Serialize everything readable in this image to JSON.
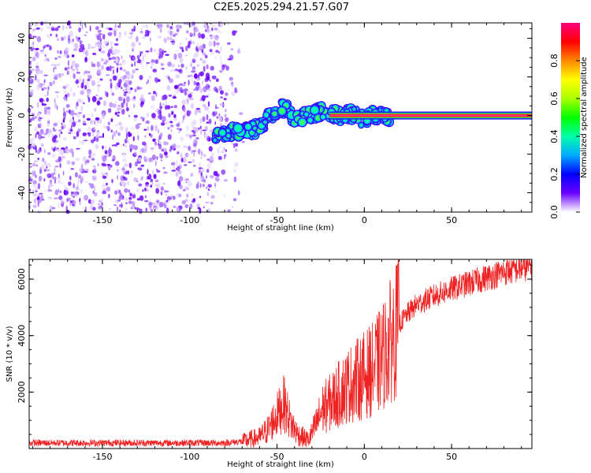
{
  "title": "C2E5.2025.294.21.57.G07",
  "chart_data": [
    {
      "type": "heatmap",
      "name": "spectrogram",
      "xlabel": "Height of straight line (km)",
      "ylabel": "Frequency (Hz)",
      "xlim": [
        -192,
        96
      ],
      "ylim": [
        -50,
        48
      ],
      "xticks": [
        -150,
        -100,
        -50,
        0,
        50
      ],
      "yticks": [
        -40,
        -20,
        0,
        20,
        40
      ],
      "noise_region_x": [
        -192,
        -68
      ],
      "signal_path": [
        {
          "x": -86,
          "y": -12
        },
        {
          "x": -75,
          "y": -8
        },
        {
          "x": -65,
          "y": -8
        },
        {
          "x": -58,
          "y": -6
        },
        {
          "x": -55,
          "y": 0
        },
        {
          "x": -50,
          "y": 2
        },
        {
          "x": -45,
          "y": 5
        },
        {
          "x": -40,
          "y": -3
        },
        {
          "x": -35,
          "y": 0
        },
        {
          "x": -30,
          "y": 1
        },
        {
          "x": -25,
          "y": 2
        },
        {
          "x": -20,
          "y": 1
        },
        {
          "x": -15,
          "y": 0
        },
        {
          "x": -5,
          "y": 1
        },
        {
          "x": 0,
          "y": -3
        },
        {
          "x": 5,
          "y": 0
        },
        {
          "x": 12,
          "y": 0
        },
        {
          "x": 96,
          "y": 0
        }
      ],
      "steady_tone_x": [
        -20,
        96
      ],
      "steady_tone_y": 0
    },
    {
      "type": "colorbar",
      "name": "amplitude-colorbar",
      "label": "Normalized spectral amplitude",
      "range": [
        0.0,
        1.0
      ],
      "ticks": [
        "0.0",
        "0.2",
        "0.4",
        "0.6",
        "0.8"
      ],
      "tick_values": [
        0.0,
        0.2,
        0.4,
        0.6,
        0.8
      ],
      "colors": [
        "#ffffff",
        "#6a00ff",
        "#0000ff",
        "#00aaff",
        "#00ffaa",
        "#00ff00",
        "#aaff00",
        "#ffff00",
        "#ff8800",
        "#ff0000",
        "#ff0080"
      ]
    },
    {
      "type": "line",
      "name": "snr-trace",
      "xlabel": "Height of straight line (km)",
      "ylabel": "SNR (10 * v/v)",
      "xlim": [
        -192,
        96
      ],
      "ylim": [
        0,
        6700
      ],
      "xticks": [
        -150,
        -100,
        -50,
        0,
        50
      ],
      "yticks": [
        2000,
        4000,
        6000
      ],
      "color": "#ee2222",
      "envelope": [
        {
          "x": -192,
          "y": 200
        },
        {
          "x": -80,
          "y": 200
        },
        {
          "x": -70,
          "y": 250
        },
        {
          "x": -60,
          "y": 400
        },
        {
          "x": -55,
          "y": 700
        },
        {
          "x": -50,
          "y": 1200
        },
        {
          "x": -46,
          "y": 1600
        },
        {
          "x": -42,
          "y": 900
        },
        {
          "x": -38,
          "y": 500
        },
        {
          "x": -32,
          "y": 300
        },
        {
          "x": -28,
          "y": 800
        },
        {
          "x": -24,
          "y": 1400
        },
        {
          "x": -20,
          "y": 1600
        },
        {
          "x": -15,
          "y": 1900
        },
        {
          "x": -10,
          "y": 2200
        },
        {
          "x": -5,
          "y": 2400
        },
        {
          "x": 0,
          "y": 2600
        },
        {
          "x": 5,
          "y": 2800
        },
        {
          "x": 10,
          "y": 3200
        },
        {
          "x": 15,
          "y": 3800
        },
        {
          "x": 20,
          "y": 4400
        },
        {
          "x": 25,
          "y": 4800
        },
        {
          "x": 30,
          "y": 5100
        },
        {
          "x": 40,
          "y": 5400
        },
        {
          "x": 50,
          "y": 5650
        },
        {
          "x": 60,
          "y": 5850
        },
        {
          "x": 70,
          "y": 6050
        },
        {
          "x": 80,
          "y": 6250
        },
        {
          "x": 90,
          "y": 6400
        },
        {
          "x": 96,
          "y": 6450
        }
      ]
    }
  ]
}
